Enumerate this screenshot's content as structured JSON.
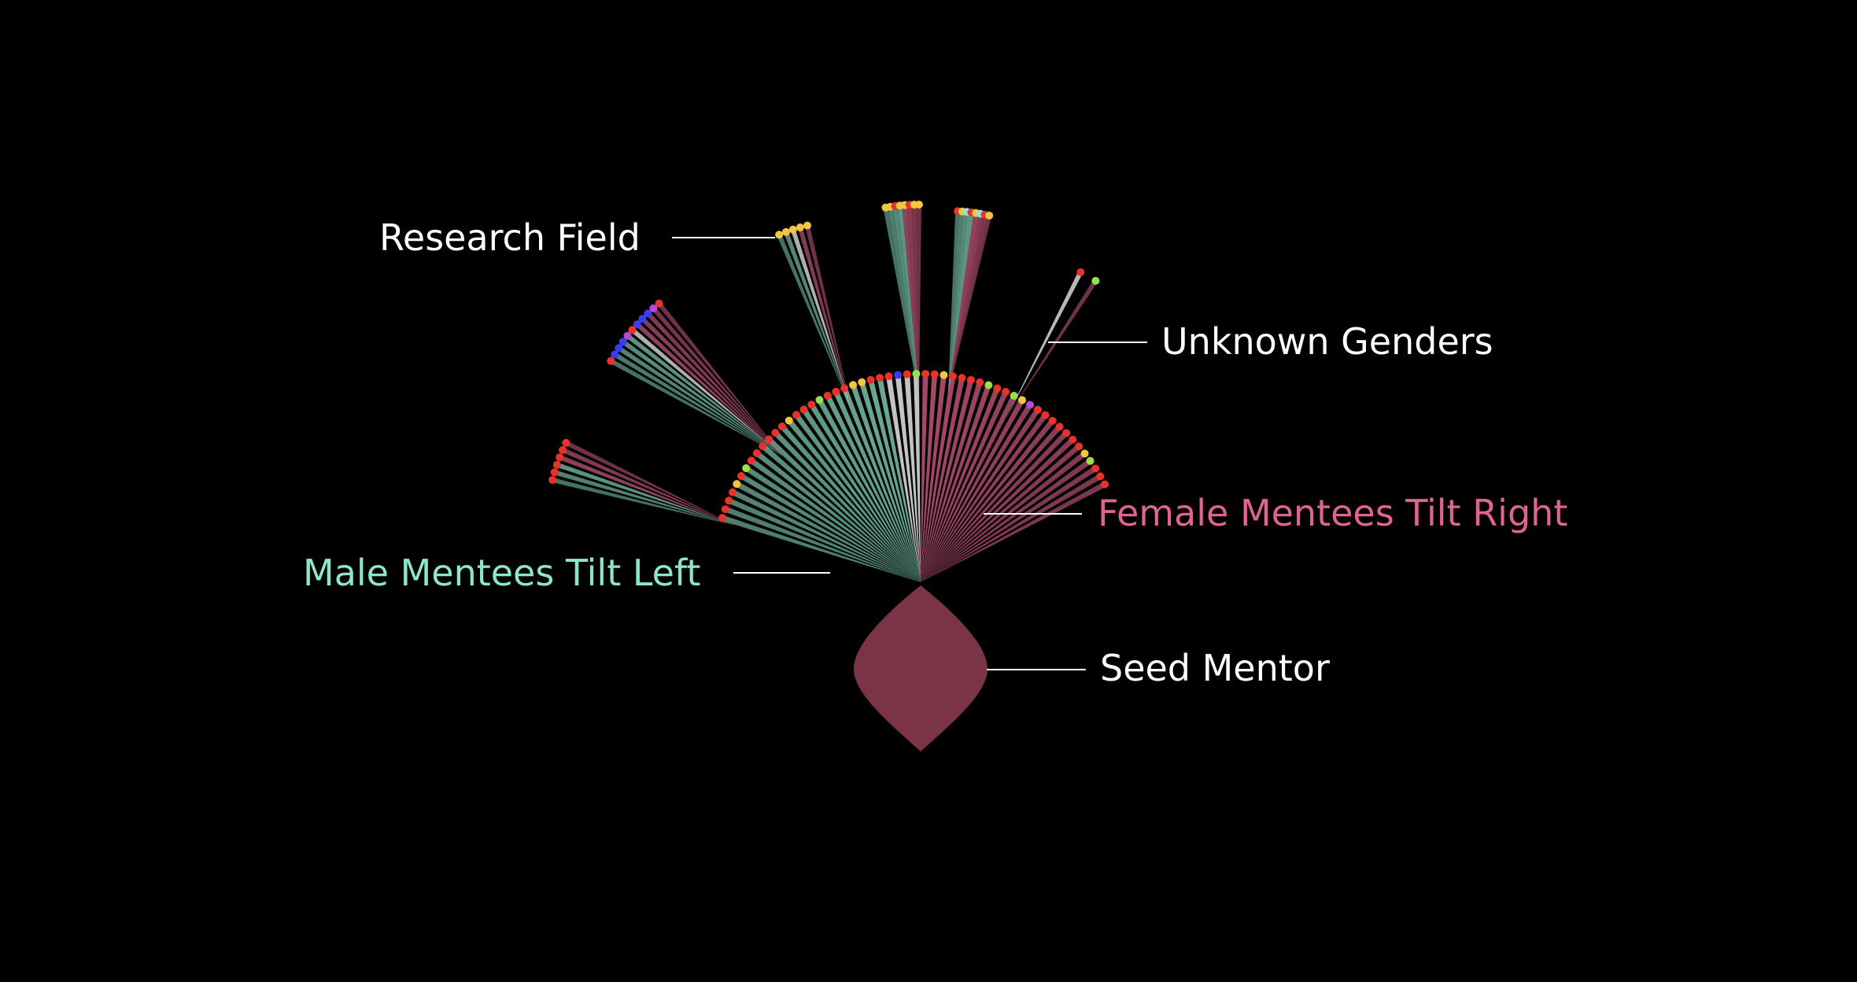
{
  "labels": {
    "research_field": "Research Field",
    "unknown_genders": "Unknown Genders",
    "female_mentees": "Female Mentees Tilt Right",
    "male_mentees": "Male Mentees Tilt Left",
    "seed_mentor": "Seed Mentor"
  },
  "colors": {
    "background": "#000000",
    "male": "#8ee6c8",
    "female": "#e0648c",
    "unknown": "#d8d8d8",
    "seed": "#7a3446",
    "label_default": "#ffffff",
    "leader_line": "#ffffff"
  }
}
